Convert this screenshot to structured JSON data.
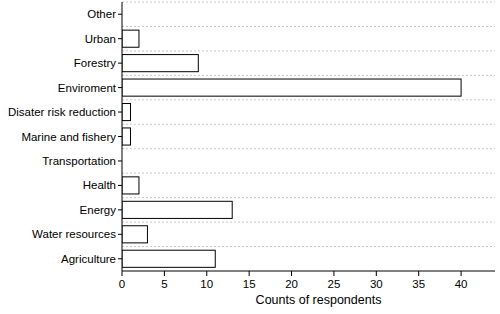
{
  "chart_data": {
    "type": "bar",
    "orientation": "horizontal",
    "x_label": "Counts of respondents",
    "categories": [
      "Agriculture",
      "Water resources",
      "Energy",
      "Health",
      "Transportation",
      "Marine and fishery",
      "Disater risk reduction",
      "Enviroment",
      "Forestry",
      "Urban",
      "Other"
    ],
    "values": [
      11,
      3,
      13,
      2,
      0,
      1,
      1,
      40,
      9,
      2,
      0
    ],
    "color": "#ffffff",
    "xlim": [
      0,
      44
    ],
    "xticks": [
      0,
      5,
      10,
      15,
      20,
      25,
      30,
      35,
      40
    ],
    "grid": true
  }
}
